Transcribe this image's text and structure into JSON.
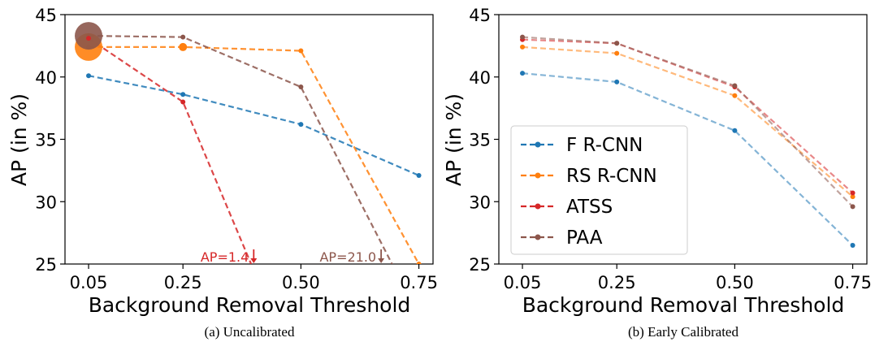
{
  "chart_data": [
    {
      "type": "line",
      "caption": "(a) Uncalibrated",
      "xlabel": "Background Removal Threshold",
      "ylabel": "AP (in %)",
      "xticks": [
        "0.05",
        "0.25",
        "0.50",
        "0.75"
      ],
      "yticks": [
        "25",
        "30",
        "35",
        "40",
        "45"
      ],
      "xlim": [
        0.0,
        0.78
      ],
      "ylim": [
        25,
        45
      ],
      "grid": false,
      "legend": "none",
      "series": [
        {
          "key": "frcnn",
          "color": "#1f77b4",
          "x": [
            0.05,
            0.25,
            0.5,
            0.75
          ],
          "y": [
            40.1,
            38.6,
            36.2,
            32.1
          ]
        },
        {
          "key": "rsrcnn",
          "color": "#ff7f0e",
          "x": [
            0.05,
            0.25,
            0.5,
            0.75
          ],
          "y": [
            42.4,
            42.4,
            42.1,
            25.0
          ]
        },
        {
          "key": "atss",
          "color": "#d62728",
          "x": [
            0.05,
            0.25,
            0.4
          ],
          "y": [
            43.1,
            38.0,
            24.5
          ]
        },
        {
          "key": "paa",
          "color": "#8c564b",
          "x": [
            0.05,
            0.25,
            0.5,
            0.7
          ],
          "y": [
            43.3,
            43.2,
            39.2,
            24.5
          ]
        }
      ],
      "highlights": [
        {
          "series": "rsrcnn",
          "x": 0.05,
          "y": 42.4,
          "size": "large"
        },
        {
          "series": "paa",
          "x": 0.05,
          "y": 43.3,
          "size": "large"
        },
        {
          "series": "rsrcnn",
          "x": 0.25,
          "y": 42.4,
          "size": "small"
        }
      ],
      "annotations": [
        {
          "text": "AP=1.4",
          "x": 0.4,
          "color": "#d62728"
        },
        {
          "text": "AP=21.0",
          "x": 0.67,
          "color": "#8c564b"
        }
      ]
    },
    {
      "type": "line",
      "caption": "(b) Early Calibrated",
      "xlabel": "Background Removal Threshold",
      "ylabel": "AP (in %)",
      "xticks": [
        "0.05",
        "0.25",
        "0.50",
        "0.75"
      ],
      "yticks": [
        "25",
        "30",
        "35",
        "40",
        "45"
      ],
      "xlim": [
        0.0,
        0.78
      ],
      "ylim": [
        25,
        45
      ],
      "grid": false,
      "legend": "lower-left",
      "series": [
        {
          "key": "frcnn",
          "name": "F R-CNN",
          "color": "#1f77b4",
          "x": [
            0.05,
            0.25,
            0.5,
            0.75
          ],
          "y": [
            40.3,
            39.6,
            35.7,
            26.5
          ]
        },
        {
          "key": "rsrcnn",
          "name": "RS R-CNN",
          "color": "#ff7f0e",
          "x": [
            0.05,
            0.25,
            0.5,
            0.75
          ],
          "y": [
            42.4,
            41.9,
            38.5,
            30.4
          ]
        },
        {
          "key": "atss",
          "name": "ATSS",
          "color": "#d62728",
          "x": [
            0.05,
            0.25,
            0.5,
            0.75
          ],
          "y": [
            43.0,
            42.7,
            39.2,
            30.7
          ]
        },
        {
          "key": "paa",
          "name": "PAA",
          "color": "#8c564b",
          "x": [
            0.05,
            0.25,
            0.5,
            0.75
          ],
          "y": [
            43.2,
            42.7,
            39.3,
            29.6
          ]
        }
      ]
    }
  ]
}
